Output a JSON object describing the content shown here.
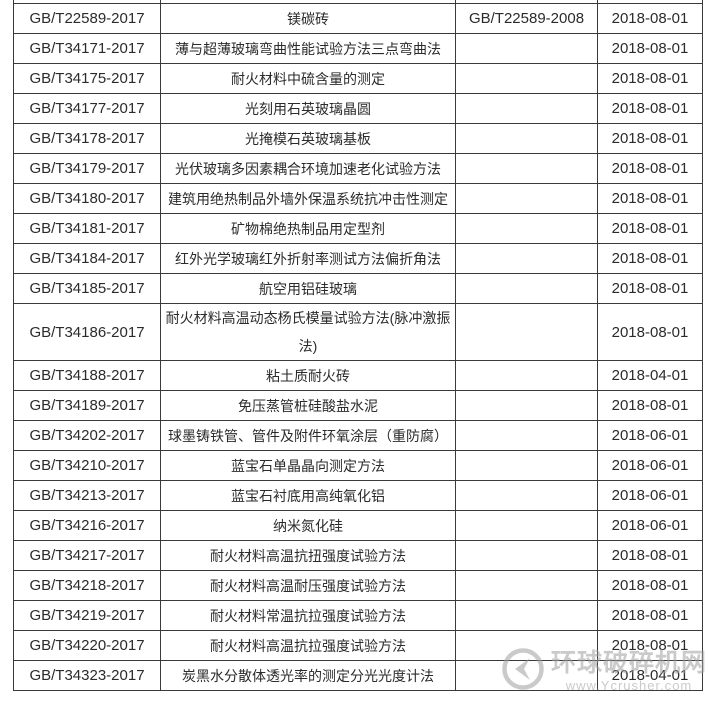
{
  "page": {
    "background_color": "#ffffff",
    "border_color": "#3a3a3a",
    "text_color": "#2b2b2b"
  },
  "table": {
    "columns": [
      "standard_number",
      "standard_name",
      "replaced_standard",
      "implementation_date"
    ],
    "rows": [
      {
        "number": "GB/T22589-2017",
        "name": "镁碳砖",
        "replaced": "GB/T22589-2008",
        "date": "2018-08-01"
      },
      {
        "number": "GB/T34171-2017",
        "name": "薄与超薄玻璃弯曲性能试验方法三点弯曲法",
        "replaced": "",
        "date": "2018-08-01"
      },
      {
        "number": "GB/T34175-2017",
        "name": "耐火材料中硫含量的测定",
        "replaced": "",
        "date": "2018-08-01"
      },
      {
        "number": "GB/T34177-2017",
        "name": "光刻用石英玻璃晶圆",
        "replaced": "",
        "date": "2018-08-01"
      },
      {
        "number": "GB/T34178-2017",
        "name": "光掩模石英玻璃基板",
        "replaced": "",
        "date": "2018-08-01"
      },
      {
        "number": "GB/T34179-2017",
        "name": "光伏玻璃多因素耦合环境加速老化试验方法",
        "replaced": "",
        "date": "2018-08-01"
      },
      {
        "number": "GB/T34180-2017",
        "name": "建筑用绝热制品外墙外保温系统抗冲击性测定",
        "replaced": "",
        "date": "2018-08-01"
      },
      {
        "number": "GB/T34181-2017",
        "name": "矿物棉绝热制品用定型剂",
        "replaced": "",
        "date": "2018-08-01"
      },
      {
        "number": "GB/T34184-2017",
        "name": "红外光学玻璃红外折射率测试方法偏折角法",
        "replaced": "",
        "date": "2018-08-01"
      },
      {
        "number": "GB/T34185-2017",
        "name": "航空用铝硅玻璃",
        "replaced": "",
        "date": "2018-08-01"
      },
      {
        "number": "GB/T34186-2017",
        "name": "耐火材料高温动态杨氏模量试验方法(脉冲激振法)",
        "replaced": "",
        "date": "2018-08-01"
      },
      {
        "number": "GB/T34188-2017",
        "name": "粘土质耐火砖",
        "replaced": "",
        "date": "2018-04-01"
      },
      {
        "number": "GB/T34189-2017",
        "name": "免压蒸管桩硅酸盐水泥",
        "replaced": "",
        "date": "2018-08-01"
      },
      {
        "number": "GB/T34202-2017",
        "name": "球墨铸铁管、管件及附件环氧涂层（重防腐）",
        "replaced": "",
        "date": "2018-06-01"
      },
      {
        "number": "GB/T34210-2017",
        "name": "蓝宝石单晶晶向测定方法",
        "replaced": "",
        "date": "2018-06-01"
      },
      {
        "number": "GB/T34213-2017",
        "name": "蓝宝石衬底用高纯氧化铝",
        "replaced": "",
        "date": "2018-06-01"
      },
      {
        "number": "GB/T34216-2017",
        "name": "纳米氮化硅",
        "replaced": "",
        "date": "2018-06-01"
      },
      {
        "number": "GB/T34217-2017",
        "name": "耐火材料高温抗扭强度试验方法",
        "replaced": "",
        "date": "2018-08-01"
      },
      {
        "number": "GB/T34218-2017",
        "name": "耐火材料高温耐压强度试验方法",
        "replaced": "",
        "date": "2018-08-01"
      },
      {
        "number": "GB/T34219-2017",
        "name": "耐火材料常温抗拉强度试验方法",
        "replaced": "",
        "date": "2018-08-01"
      },
      {
        "number": "GB/T34220-2017",
        "name": "耐火材料高温抗拉强度试验方法",
        "replaced": "",
        "date": "2018-08-01"
      },
      {
        "number": "GB/T34323-2017",
        "name": "炭黑水分散体透光率的测定分光光度计法",
        "replaced": "",
        "date": "2018-04-01"
      }
    ]
  },
  "watermark": {
    "site_name": "环球破碎机网",
    "site_url": "www.Ycrusher.com",
    "color": "#9f9f9f"
  }
}
